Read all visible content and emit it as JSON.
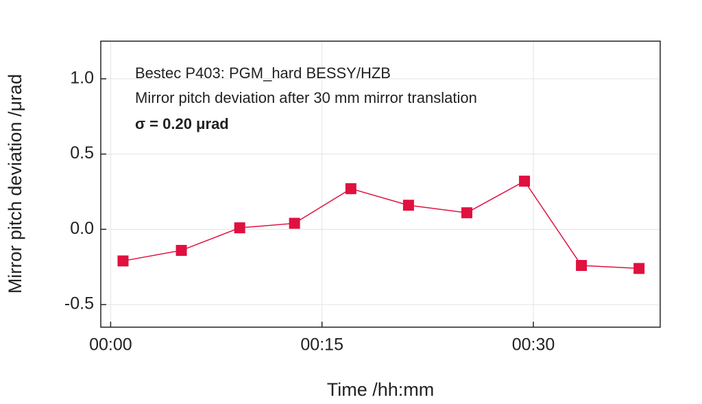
{
  "chart_data": {
    "type": "line",
    "annotations": [
      "Bestec P403: PGM_hard BESSY/HZB",
      "Mirror pitch deviation after 30 mm mirror translation",
      "σ = 0.20 μrad"
    ],
    "x_label": "Time /hh:mm",
    "y_label": "Mirror pitch deviation /μrad",
    "x": [
      0.88,
      5.02,
      9.16,
      13.05,
      17.05,
      21.14,
      25.28,
      29.37,
      33.41,
      37.5
    ],
    "values": [
      -0.21,
      -0.14,
      0.01,
      0.04,
      0.27,
      0.16,
      0.11,
      0.32,
      -0.24,
      -0.26
    ],
    "color": "#e0103f",
    "xlim": [
      -0.7,
      39.0
    ],
    "xticks": [
      {
        "value": 0,
        "label": "00:00"
      },
      {
        "value": 15,
        "label": "00:15"
      },
      {
        "value": 30,
        "label": "00:30"
      }
    ],
    "ylim": [
      -0.65,
      1.25
    ],
    "yticks": [
      {
        "value": 1.0,
        "label": "1.0"
      },
      0.5,
      {
        "value": 0.0,
        "label": "0.0"
      },
      -0.5
    ],
    "grid": true
  }
}
